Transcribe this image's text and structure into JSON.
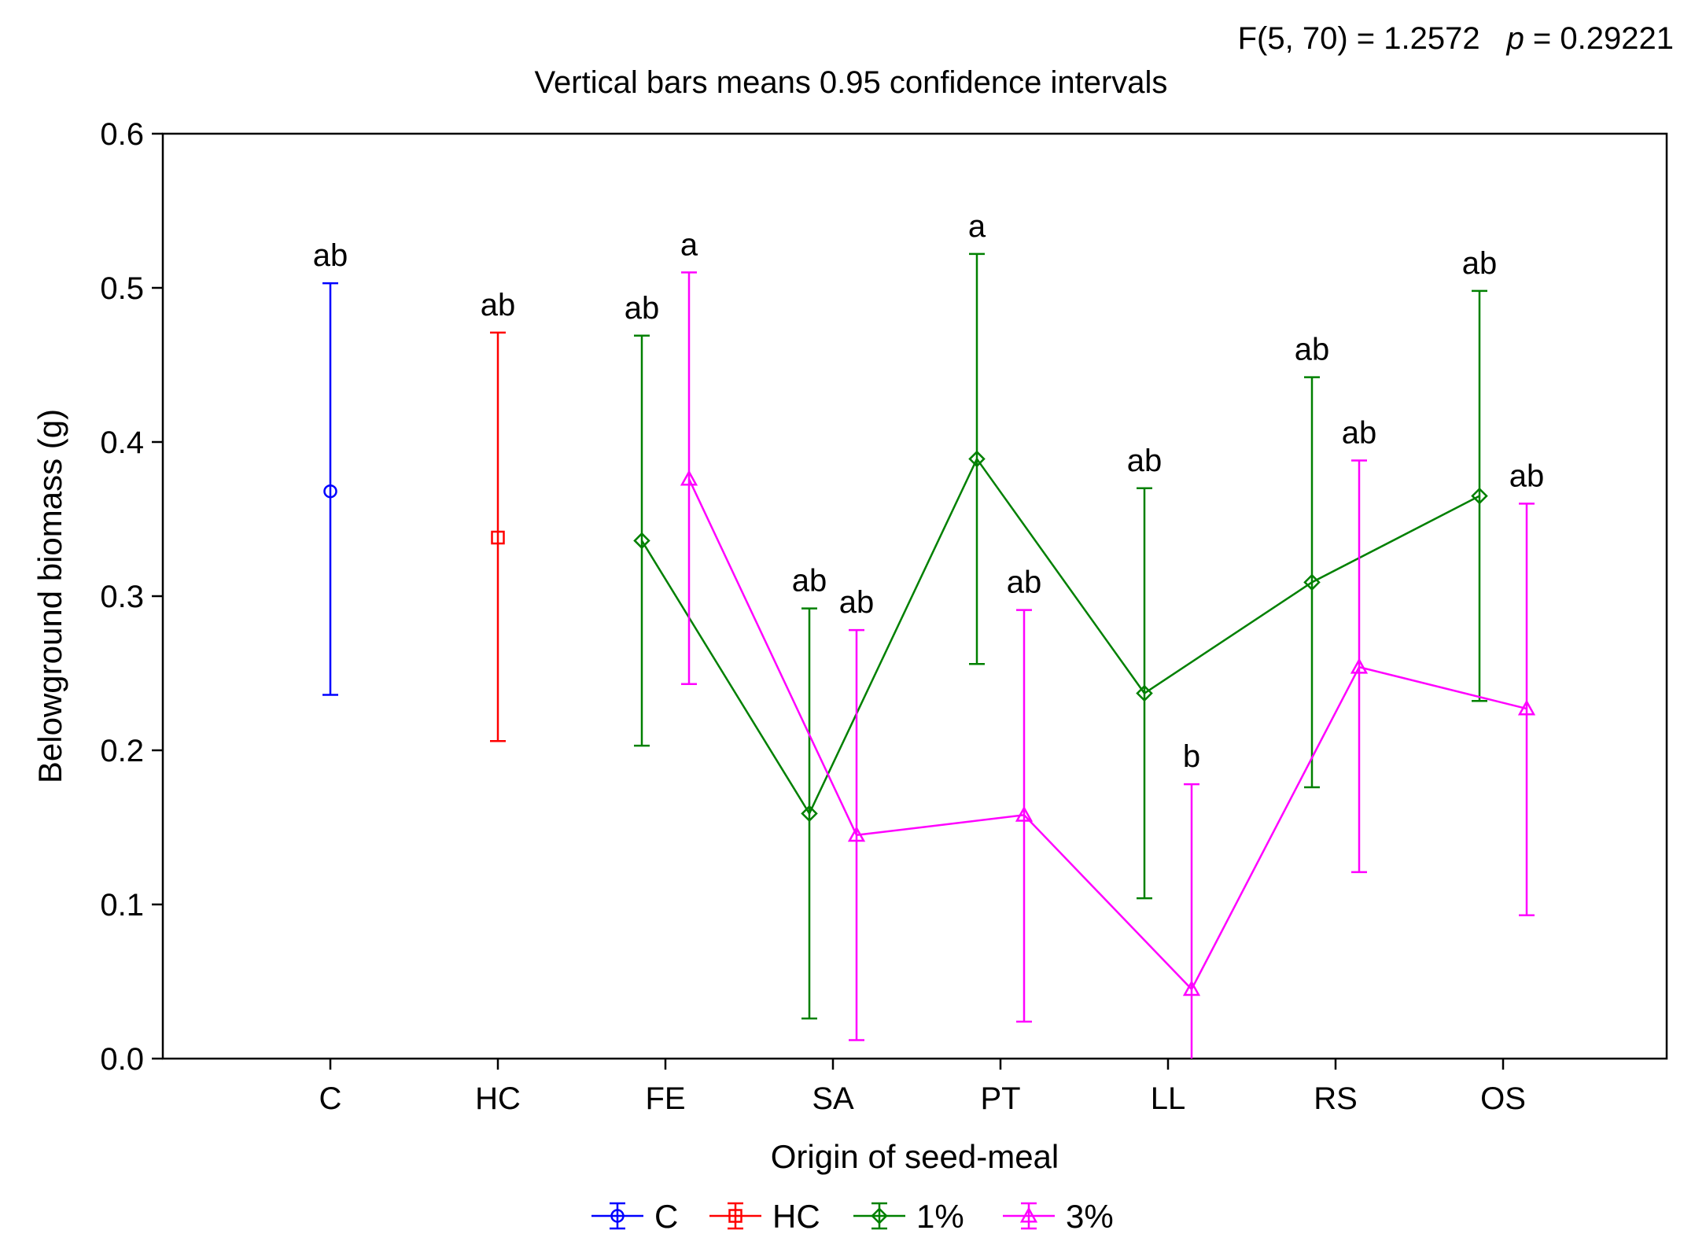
{
  "chart_data": {
    "type": "line",
    "stat_text": "F(5, 70) = 1.2572",
    "p_label": "p",
    "p_value": " = 0.29221",
    "title": "Vertical bars means 0.95 confidence intervals",
    "xlabel": "Origin of seed-meal",
    "ylabel": "Belowground biomass (g)",
    "ylim": [
      0,
      0.6
    ],
    "y_ticks": [
      "0.0",
      "0.1",
      "0.2",
      "0.3",
      "0.4",
      "0.5",
      "0.6"
    ],
    "categories": [
      "C",
      "HC",
      "FE",
      "SA",
      "PT",
      "LL",
      "RS",
      "OS"
    ],
    "legend_position": "bottom",
    "grid": false,
    "series": [
      {
        "name": "C",
        "color": "#0000ff",
        "marker": "circle",
        "points": [
          {
            "category": "C",
            "mean": 0.368,
            "lower": 0.236,
            "upper": 0.503,
            "letter": "ab"
          }
        ]
      },
      {
        "name": "HC",
        "color": "#ff0000",
        "marker": "square",
        "points": [
          {
            "category": "HC",
            "mean": 0.338,
            "lower": 0.206,
            "upper": 0.471,
            "letter": "ab"
          }
        ]
      },
      {
        "name": "1%",
        "color": "#008000",
        "marker": "diamond",
        "points": [
          {
            "category": "FE",
            "mean": 0.336,
            "lower": 0.203,
            "upper": 0.469,
            "letter": "ab"
          },
          {
            "category": "SA",
            "mean": 0.159,
            "lower": 0.026,
            "upper": 0.292,
            "letter": "ab"
          },
          {
            "category": "PT",
            "mean": 0.389,
            "lower": 0.256,
            "upper": 0.522,
            "letter": "a"
          },
          {
            "category": "LL",
            "mean": 0.237,
            "lower": 0.104,
            "upper": 0.37,
            "letter": "ab"
          },
          {
            "category": "RS",
            "mean": 0.309,
            "lower": 0.176,
            "upper": 0.442,
            "letter": "ab"
          },
          {
            "category": "OS",
            "mean": 0.365,
            "lower": 0.232,
            "upper": 0.498,
            "letter": "ab"
          }
        ]
      },
      {
        "name": "3%",
        "color": "#ff00ff",
        "marker": "triangle",
        "points": [
          {
            "category": "FE",
            "mean": 0.376,
            "lower": 0.243,
            "upper": 0.51,
            "letter": "a"
          },
          {
            "category": "SA",
            "mean": 0.145,
            "lower": 0.012,
            "upper": 0.278,
            "letter": "ab"
          },
          {
            "category": "PT",
            "mean": 0.158,
            "lower": 0.024,
            "upper": 0.291,
            "letter": "ab"
          },
          {
            "category": "LL",
            "mean": 0.045,
            "lower": 0.0,
            "upper": 0.178,
            "letter": "b"
          },
          {
            "category": "RS",
            "mean": 0.254,
            "lower": 0.121,
            "upper": 0.388,
            "letter": "ab"
          },
          {
            "category": "OS",
            "mean": 0.227,
            "lower": 0.093,
            "upper": 0.36,
            "letter": "ab"
          }
        ]
      }
    ]
  }
}
